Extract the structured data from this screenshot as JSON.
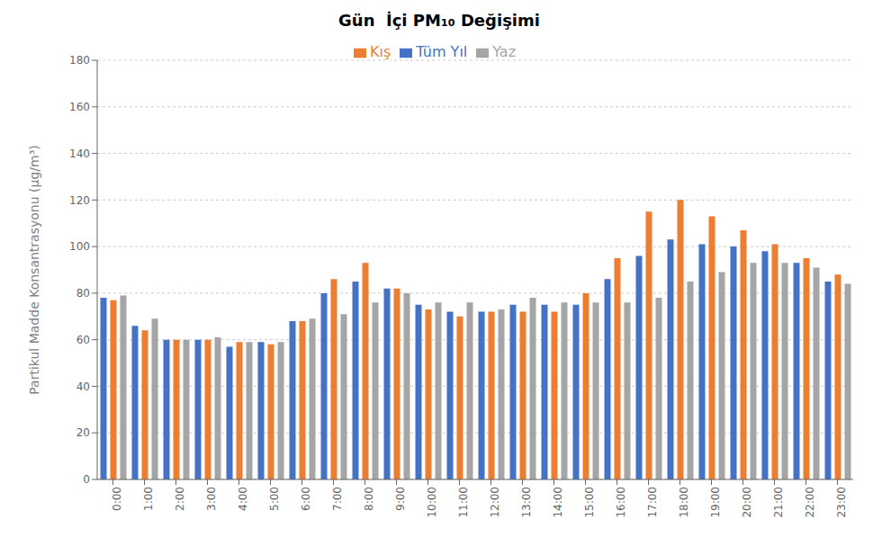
{
  "chart_data": {
    "type": "bar",
    "title": "Gün  İçi PM₁₀ Değişimi",
    "y_label": "Partikul Madde Konsantrasyonu (µg/m³)",
    "categories": [
      "0:00",
      "1:00",
      "2:00",
      "3:00",
      "4:00",
      "5:00",
      "6:00",
      "7:00",
      "8:00",
      "9:00",
      "10:00",
      "11:00",
      "12:00",
      "13:00",
      "14:00",
      "15:00",
      "16:00",
      "17:00",
      "18:00",
      "19:00",
      "20:00",
      "21:00",
      "22:00",
      "23:00"
    ],
    "series": [
      {
        "name": "Tüm Yıl",
        "color": "#4472C4",
        "values": [
          78,
          66,
          60,
          60,
          57,
          59,
          68,
          80,
          85,
          82,
          75,
          72,
          72,
          75,
          75,
          75,
          86,
          96,
          103,
          101,
          100,
          98,
          93,
          85
        ]
      },
      {
        "name": "Kış",
        "color": "#ED7D31",
        "values": [
          77,
          64,
          60,
          60,
          59,
          58,
          68,
          86,
          93,
          82,
          73,
          70,
          72,
          72,
          72,
          80,
          95,
          115,
          120,
          113,
          107,
          101,
          95,
          88
        ]
      },
      {
        "name": "Yaz",
        "color": "#A5A5A5",
        "values": [
          79,
          69,
          60,
          61,
          59,
          59,
          69,
          71,
          76,
          80,
          76,
          76,
          73,
          78,
          76,
          76,
          76,
          78,
          85,
          89,
          93,
          93,
          91,
          84
        ]
      }
    ],
    "ylim": [
      0,
      180
    ],
    "yticks": [
      0,
      20,
      40,
      60,
      80,
      100,
      120,
      140,
      160,
      180
    ],
    "grid": true,
    "legend": "top"
  }
}
